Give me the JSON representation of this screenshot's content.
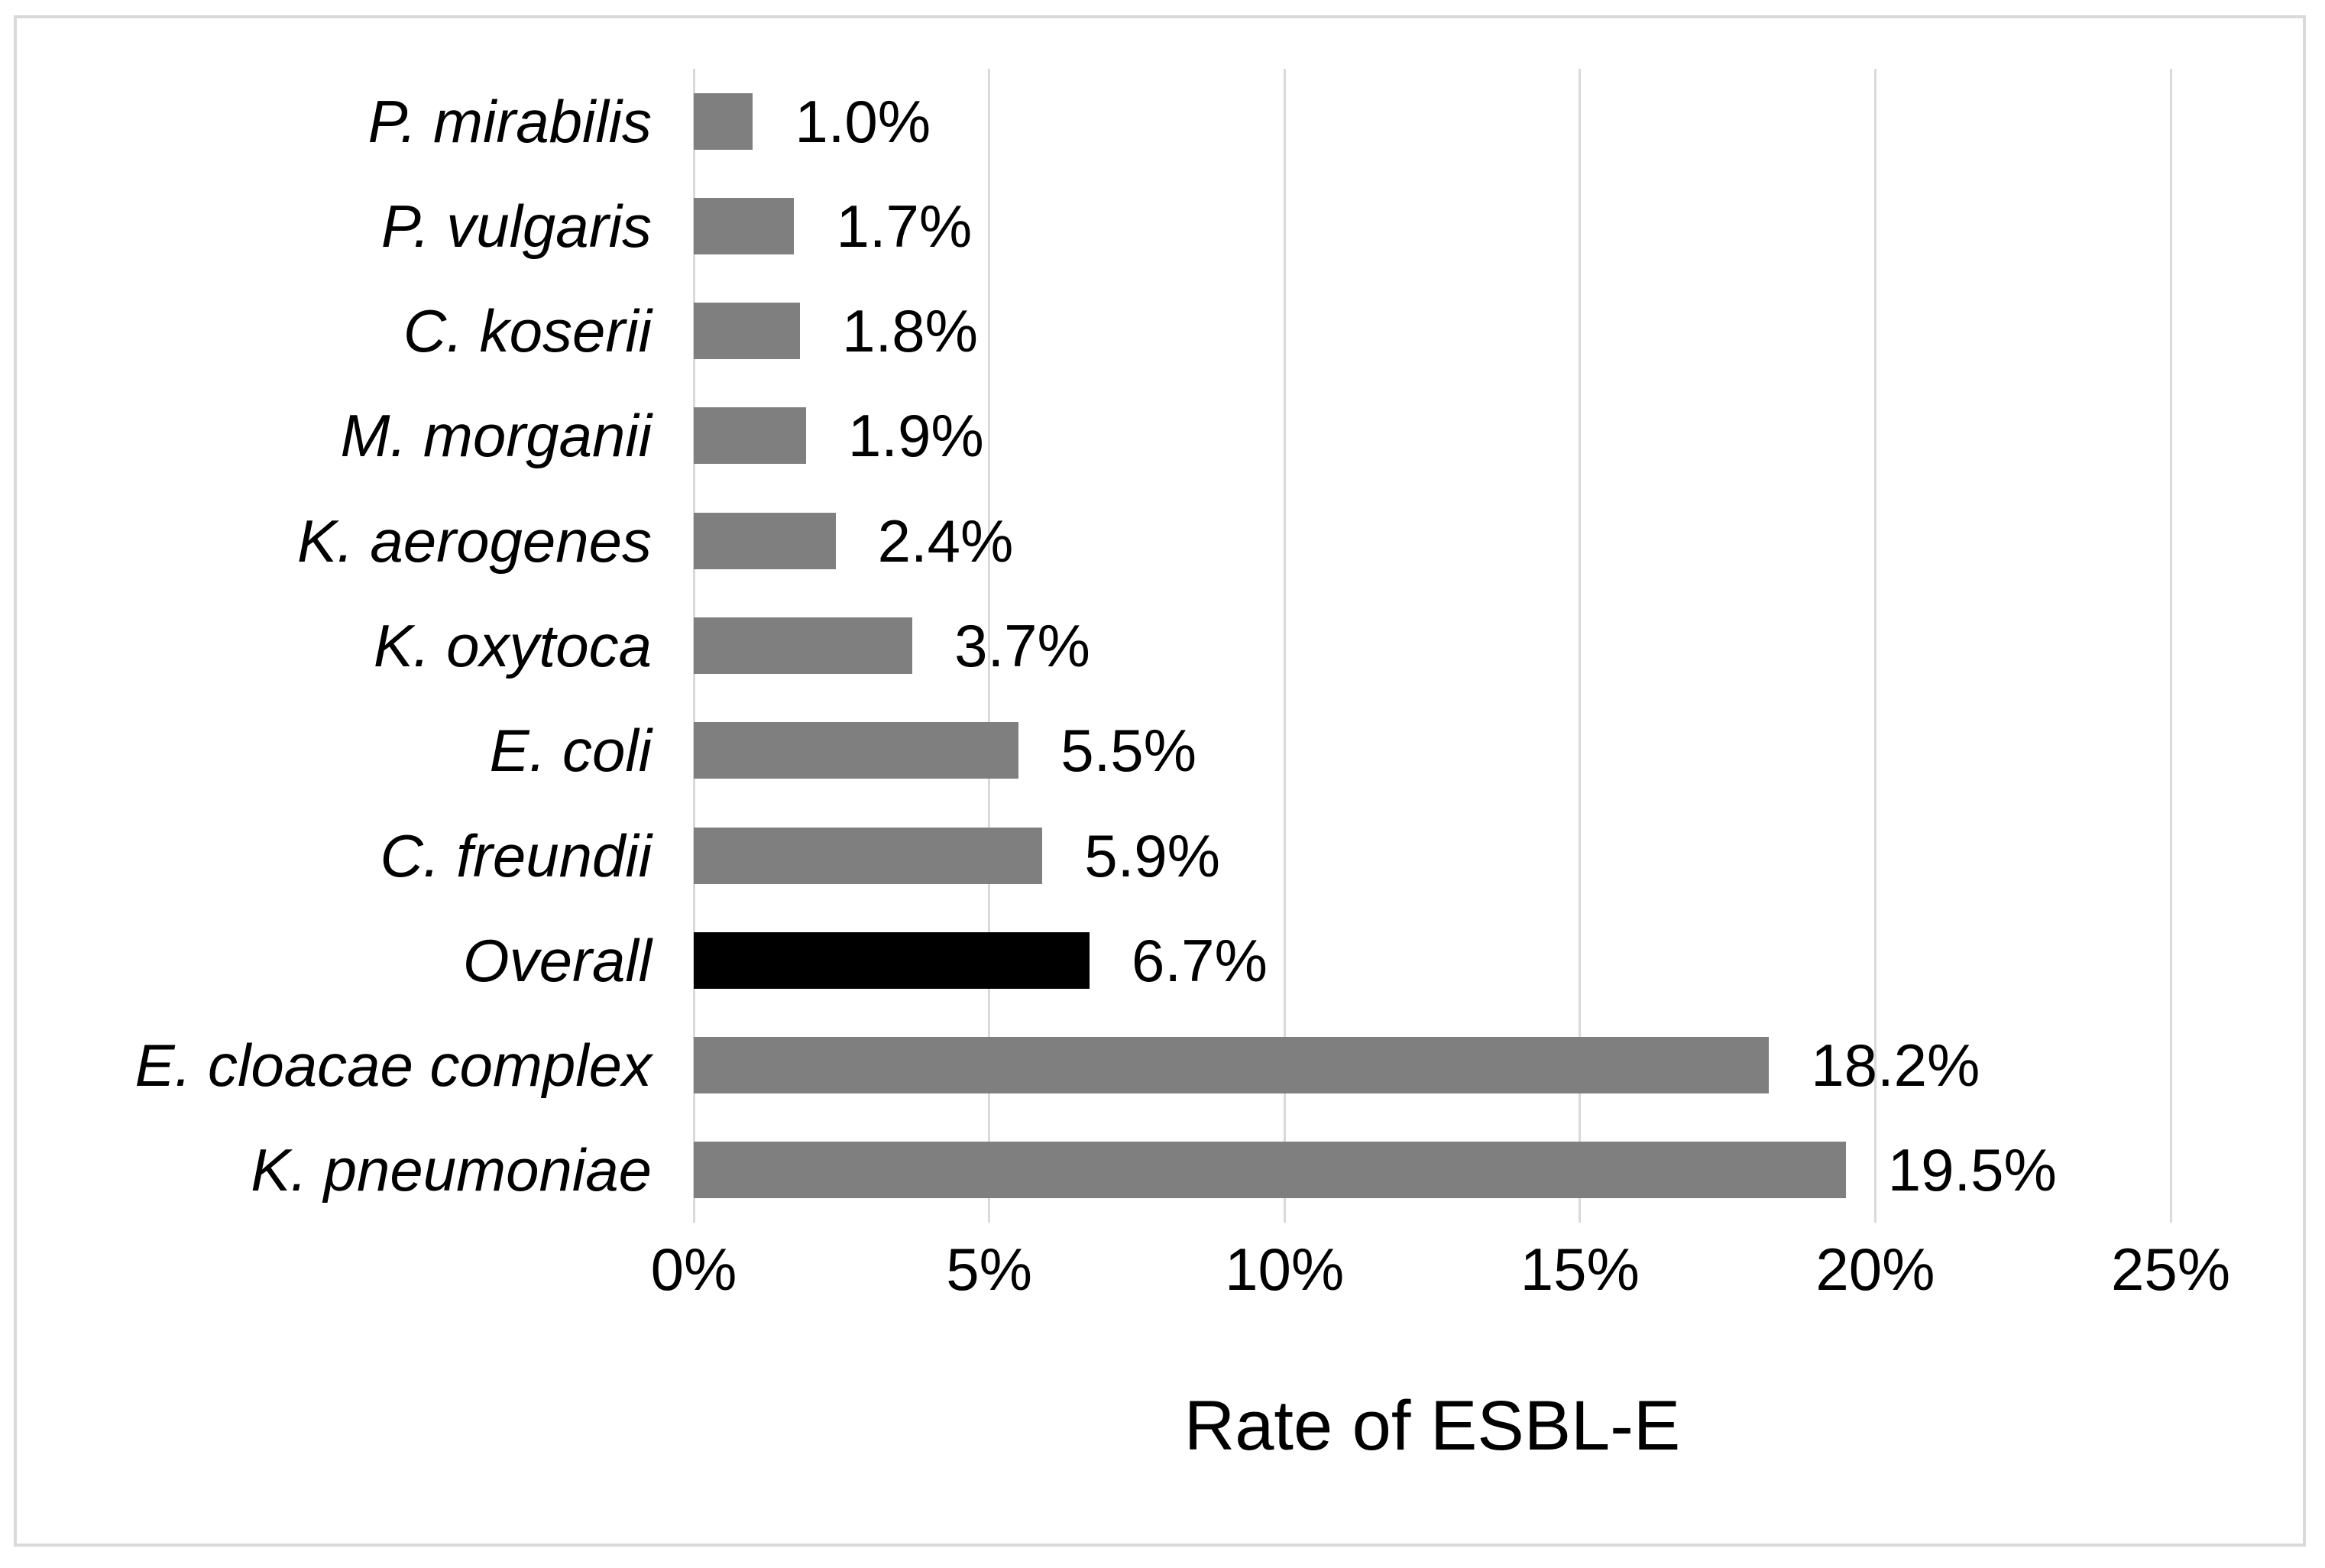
{
  "chart_data": {
    "type": "bar",
    "orientation": "horizontal",
    "title": "",
    "xlabel": "Rate of ESBL-E",
    "ylabel": "",
    "categories": [
      "P. mirabilis",
      "P. vulgaris",
      "C. koserii",
      "M. morganii",
      "K. aerogenes",
      "K. oxytoca",
      "E. coli",
      "C. freundii",
      "Overall",
      "E. cloacae complex",
      "K. pneumoniae"
    ],
    "values": [
      1.0,
      1.7,
      1.8,
      1.9,
      2.4,
      3.7,
      5.5,
      5.9,
      6.7,
      18.2,
      19.5
    ],
    "value_labels": [
      "1.0%",
      "1.7%",
      "1.8%",
      "1.9%",
      "2.4%",
      "3.7%",
      "5.5%",
      "5.9%",
      "6.7%",
      "18.2%",
      "19.5%"
    ],
    "x_ticks": [
      "0%",
      "5%",
      "10%",
      "15%",
      "20%",
      "25%"
    ],
    "x_tick_values": [
      0,
      5,
      10,
      15,
      20,
      25
    ],
    "xlim": [
      0,
      25
    ],
    "grid": true,
    "legend_position": "none",
    "highlight_category": "Overall",
    "colors": {
      "bar": "#7f7f7f",
      "highlight_bar": "#000000",
      "gridline": "#d9d9d9",
      "frame_border": "#d9d9d9",
      "text": "#000000",
      "background": "#ffffff"
    }
  }
}
